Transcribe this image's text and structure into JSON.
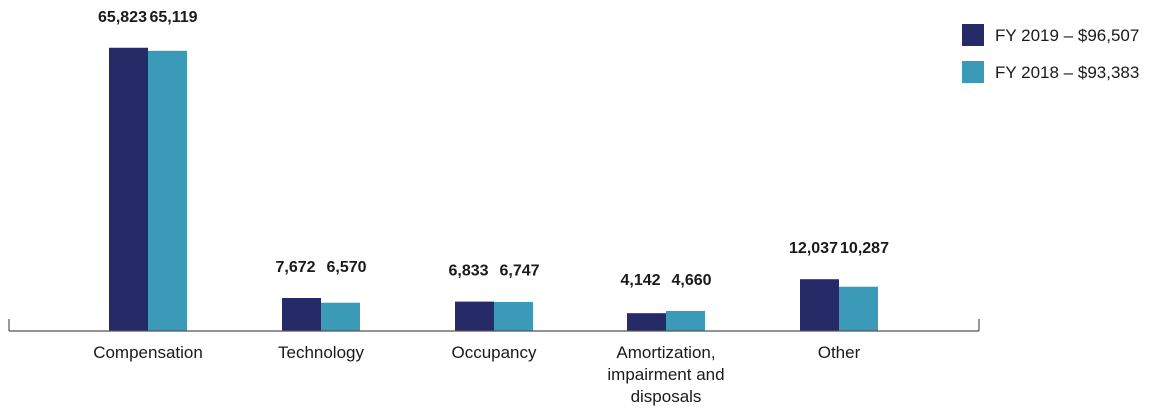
{
  "chart_data": {
    "type": "bar",
    "categories": [
      "Compensation",
      "Technology",
      "Occupancy",
      "Amortization, impairment and disposals",
      "Other"
    ],
    "category_lines": [
      [
        "Compensation"
      ],
      [
        "Technology"
      ],
      [
        "Occupancy"
      ],
      [
        "Amortization,",
        "impairment and",
        "disposals"
      ],
      [
        "Other"
      ]
    ],
    "series": [
      {
        "name": "FY 2019 – $96,507",
        "color": "#262a66",
        "values": [
          65823,
          7672,
          6833,
          4142,
          12037
        ],
        "labels": [
          "65,823",
          "7,672",
          "6,833",
          "4,142",
          "12,037"
        ]
      },
      {
        "name": "FY 2018 – $93,383",
        "color": "#3a9ab8",
        "values": [
          65119,
          6570,
          6747,
          4660,
          10287
        ],
        "labels": [
          "65,119",
          "6,570",
          "6,747",
          "4,660",
          "10,287"
        ]
      }
    ],
    "ylim": [
      0,
      66000
    ],
    "grid": false,
    "legend_position": "top-right"
  }
}
